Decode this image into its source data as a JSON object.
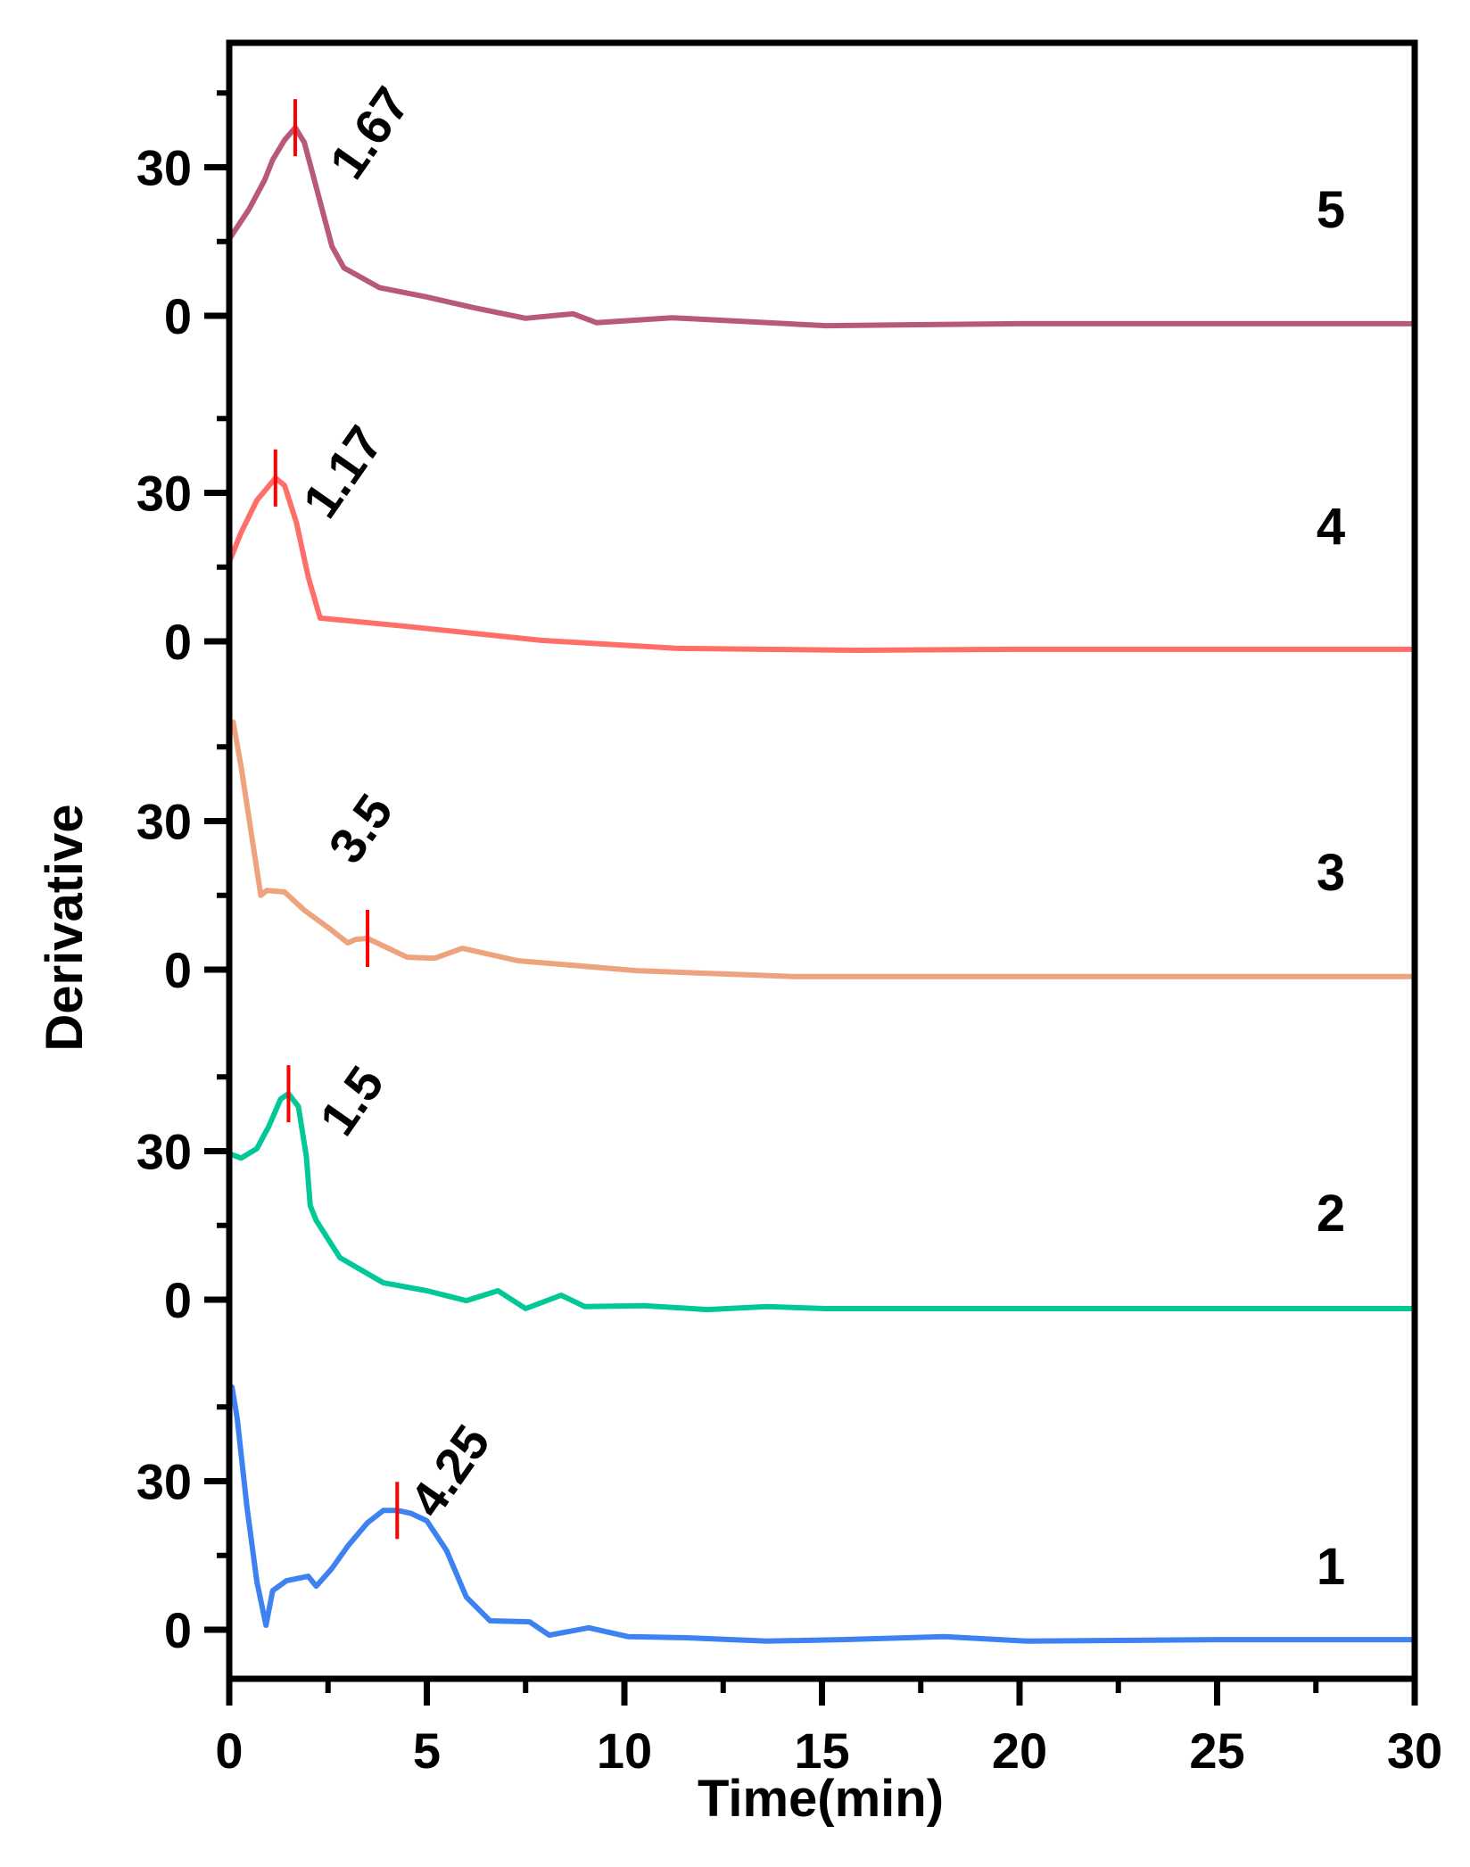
{
  "chart_data": {
    "type": "line",
    "layout": "stacked-offset-panels",
    "title": "",
    "xlabel": "Time(min)",
    "ylabel": "Derivative",
    "xlim": [
      0,
      30
    ],
    "x_ticks": [
      0,
      5,
      10,
      15,
      20,
      25,
      30
    ],
    "x_minor_ticks": [
      2.5,
      7.5,
      12.5,
      17.5,
      22.5,
      27.5
    ],
    "panel_y_ticks": [
      0,
      30
    ],
    "panel_y_minor_ticks": [
      15,
      45
    ],
    "grid": false,
    "legend": "none (series numbered 1-5 at right)",
    "marker_color": "#ff0000",
    "series": [
      {
        "name": "1",
        "color": "#3d82f0",
        "peak_label": "4.25",
        "peak_x": 4.25,
        "points": [
          [
            0.07,
            49
          ],
          [
            0.2,
            42.7
          ],
          [
            0.45,
            24.7
          ],
          [
            0.7,
            9.7
          ],
          [
            0.93,
            0.9
          ],
          [
            1.1,
            7.9
          ],
          [
            1.45,
            9.9
          ],
          [
            2.0,
            10.8
          ],
          [
            2.2,
            8.8
          ],
          [
            2.6,
            12.4
          ],
          [
            3.0,
            16.9
          ],
          [
            3.5,
            21.6
          ],
          [
            3.9,
            24.1
          ],
          [
            4.25,
            24.1
          ],
          [
            4.6,
            23.5
          ],
          [
            5.0,
            22
          ],
          [
            5.5,
            16
          ],
          [
            6.0,
            6.6
          ],
          [
            6.6,
            1.8
          ],
          [
            7.6,
            1.6
          ],
          [
            8.1,
            -1.1
          ],
          [
            9.1,
            0.4
          ],
          [
            10.1,
            -1.4
          ],
          [
            11.5,
            -1.6
          ],
          [
            13.6,
            -2.3
          ],
          [
            15.5,
            -2.0
          ],
          [
            18.1,
            -1.4
          ],
          [
            20.2,
            -2.3
          ],
          [
            25,
            -2.0
          ],
          [
            30,
            -2.0
          ]
        ]
      },
      {
        "name": "2",
        "color": "#00c896",
        "peak_label": "1.5",
        "peak_x": 1.5,
        "points": [
          [
            0,
            29.5
          ],
          [
            0.3,
            28.6
          ],
          [
            0.7,
            30.5
          ],
          [
            1.0,
            35
          ],
          [
            1.3,
            40.5
          ],
          [
            1.5,
            41.6
          ],
          [
            1.75,
            39
          ],
          [
            1.95,
            29
          ],
          [
            2.05,
            19
          ],
          [
            2.2,
            16
          ],
          [
            2.8,
            8.5
          ],
          [
            3.9,
            3.4
          ],
          [
            5.0,
            1.8
          ],
          [
            6.0,
            -0.2
          ],
          [
            6.8,
            1.8
          ],
          [
            7.5,
            -1.8
          ],
          [
            8.4,
            0.9
          ],
          [
            9.0,
            -1.4
          ],
          [
            10.5,
            -1.2
          ],
          [
            12.1,
            -2.0
          ],
          [
            13.6,
            -1.4
          ],
          [
            15.1,
            -1.8
          ],
          [
            20,
            -1.8
          ],
          [
            25,
            -1.8
          ],
          [
            30,
            -1.8
          ]
        ]
      },
      {
        "name": "3",
        "color": "#eda47e",
        "peak_label": "3.5",
        "peak_x": 3.5,
        "points": [
          [
            0.1,
            50
          ],
          [
            0.3,
            41
          ],
          [
            0.8,
            15
          ],
          [
            0.95,
            16
          ],
          [
            1.4,
            15.7
          ],
          [
            1.9,
            12
          ],
          [
            2.5,
            8.5
          ],
          [
            3.0,
            5.4
          ],
          [
            3.2,
            6.1
          ],
          [
            3.5,
            6.3
          ],
          [
            4.5,
            2.5
          ],
          [
            5.2,
            2.3
          ],
          [
            5.9,
            4.3
          ],
          [
            7.3,
            1.8
          ],
          [
            10.3,
            -0.2
          ],
          [
            14.3,
            -1.4
          ],
          [
            20,
            -1.4
          ],
          [
            25,
            -1.4
          ],
          [
            30,
            -1.4
          ]
        ]
      },
      {
        "name": "4",
        "color": "#ff6f6a",
        "peak_label": "1.17",
        "peak_x": 1.17,
        "points": [
          [
            0,
            16
          ],
          [
            0.3,
            22
          ],
          [
            0.7,
            28.5
          ],
          [
            1.17,
            33
          ],
          [
            1.4,
            31.5
          ],
          [
            1.7,
            24
          ],
          [
            2.0,
            13
          ],
          [
            2.3,
            4.7
          ],
          [
            4.4,
            3.1
          ],
          [
            7.9,
            0.2
          ],
          [
            11.3,
            -1.4
          ],
          [
            15.9,
            -1.8
          ],
          [
            20,
            -1.6
          ],
          [
            25,
            -1.6
          ],
          [
            30,
            -1.6
          ]
        ]
      },
      {
        "name": "5",
        "color": "#b8587c",
        "peak_label": "1.67",
        "peak_x": 1.67,
        "points": [
          [
            0,
            15.5
          ],
          [
            0.5,
            21.5
          ],
          [
            0.9,
            27.5
          ],
          [
            1.1,
            31.5
          ],
          [
            1.4,
            35.5
          ],
          [
            1.67,
            38
          ],
          [
            1.9,
            35
          ],
          [
            2.2,
            26
          ],
          [
            2.6,
            14
          ],
          [
            2.9,
            9.7
          ],
          [
            3.8,
            5.7
          ],
          [
            5.0,
            3.8
          ],
          [
            6.2,
            1.6
          ],
          [
            7.5,
            -0.5
          ],
          [
            8.7,
            0.4
          ],
          [
            9.3,
            -1.4
          ],
          [
            11.2,
            -0.4
          ],
          [
            15.1,
            -2.0
          ],
          [
            20,
            -1.6
          ],
          [
            25,
            -1.6
          ],
          [
            30,
            -1.6
          ]
        ]
      }
    ]
  },
  "axes": {
    "xlabel": "Time(min)",
    "ylabel": "Derivative",
    "x_tick_labels": [
      "0",
      "5",
      "10",
      "15",
      "20",
      "25",
      "30"
    ],
    "y_tick_labels": [
      "0",
      "30"
    ]
  },
  "series_labels": [
    "1",
    "2",
    "3",
    "4",
    "5"
  ],
  "peak_labels": [
    "4.25",
    "1.5",
    "3.5",
    "1.17",
    "1.67"
  ]
}
